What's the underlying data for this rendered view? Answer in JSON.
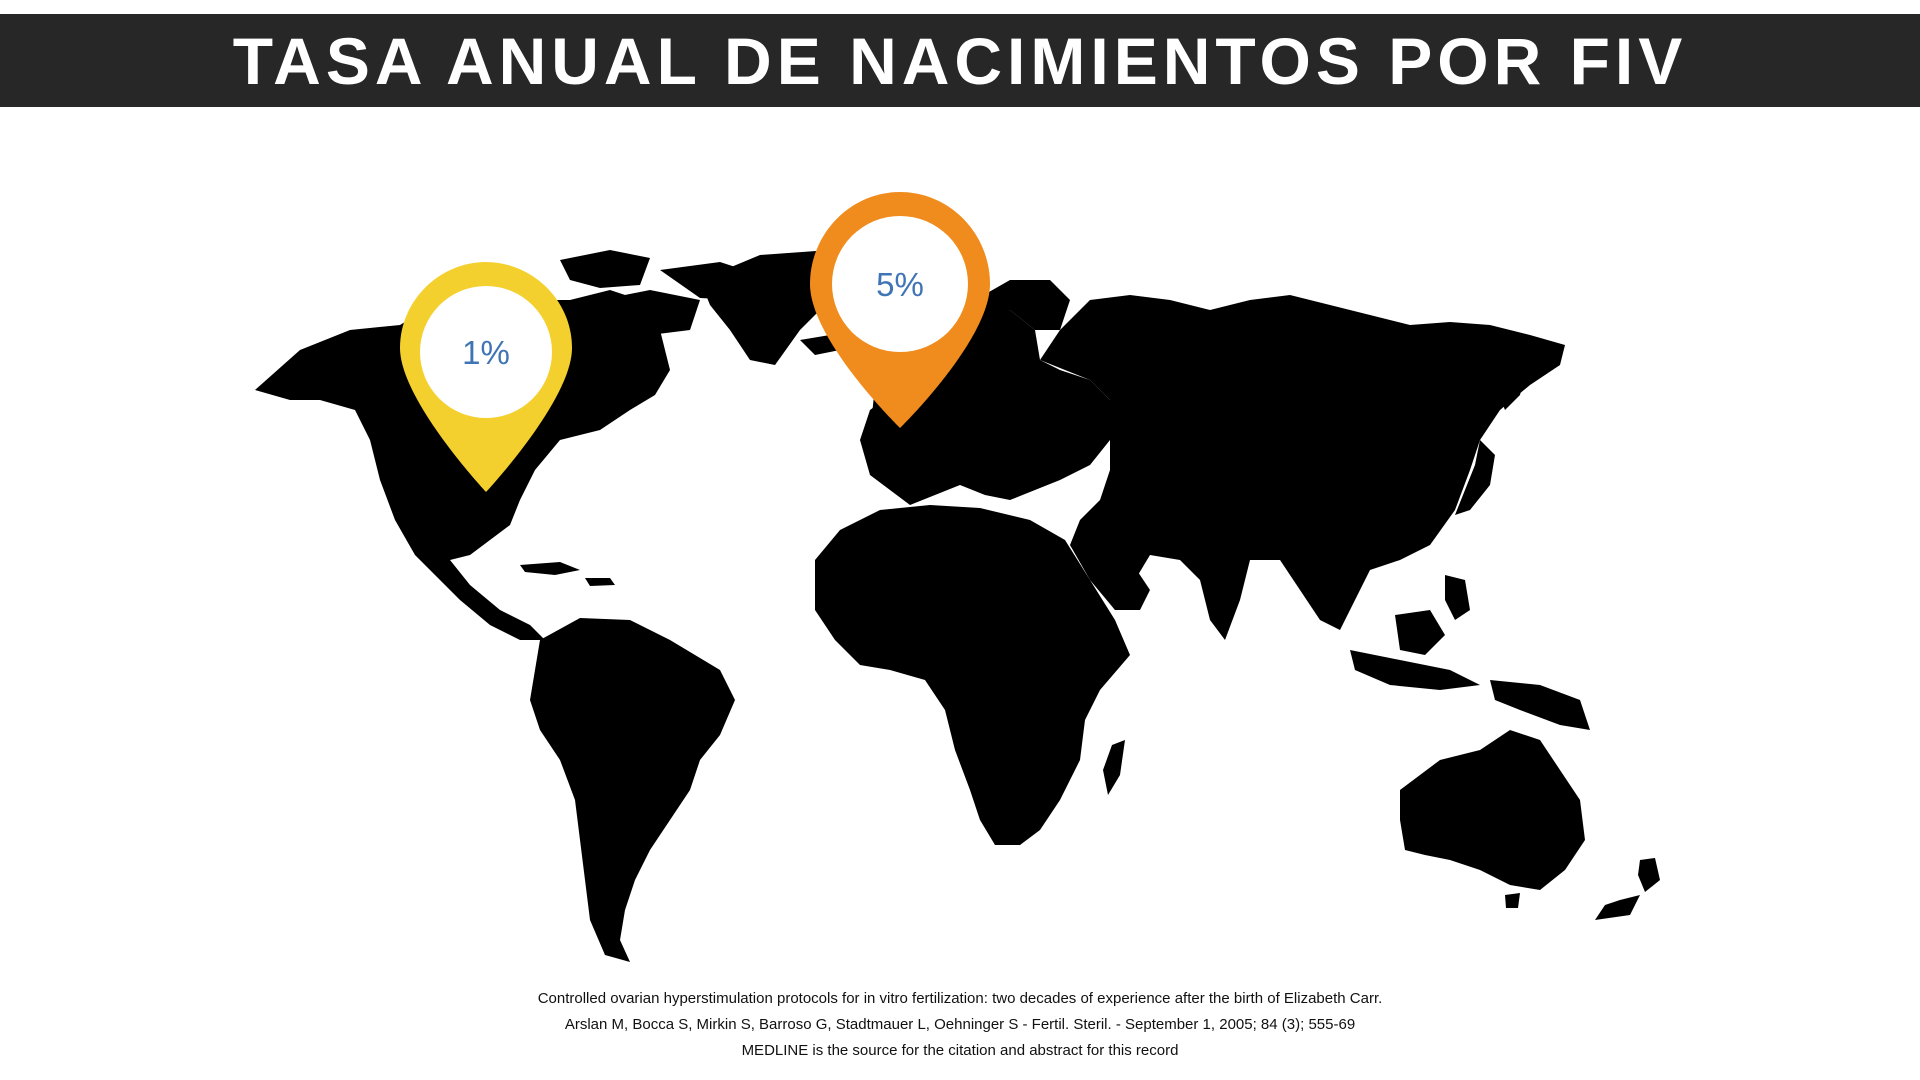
{
  "title": "TASA ANUAL DE NACIMIENTOS POR FIV",
  "colors": {
    "title_bar": "#272727",
    "map_fill": "#000000",
    "pin_north_america": "#F4D02F",
    "pin_europe": "#F08C1E",
    "pin_text": "#3F74B5"
  },
  "markers": [
    {
      "region": "North America",
      "value": "1%",
      "icon": "map-pin-icon"
    },
    {
      "region": "Europe",
      "value": "5%",
      "icon": "map-pin-icon"
    }
  ],
  "citation": {
    "line1": "Controlled ovarian hyperstimulation protocols for in vitro fertilization: two decades of experience after the birth of Elizabeth Carr.",
    "line2": "Arslan M, Bocca S, Mirkin S, Barroso G, Stadtmauer L, Oehninger S - Fertil. Steril. - September 1, 2005; 84 (3); 555-69",
    "line3": "MEDLINE is the source for the citation and abstract for this record"
  }
}
